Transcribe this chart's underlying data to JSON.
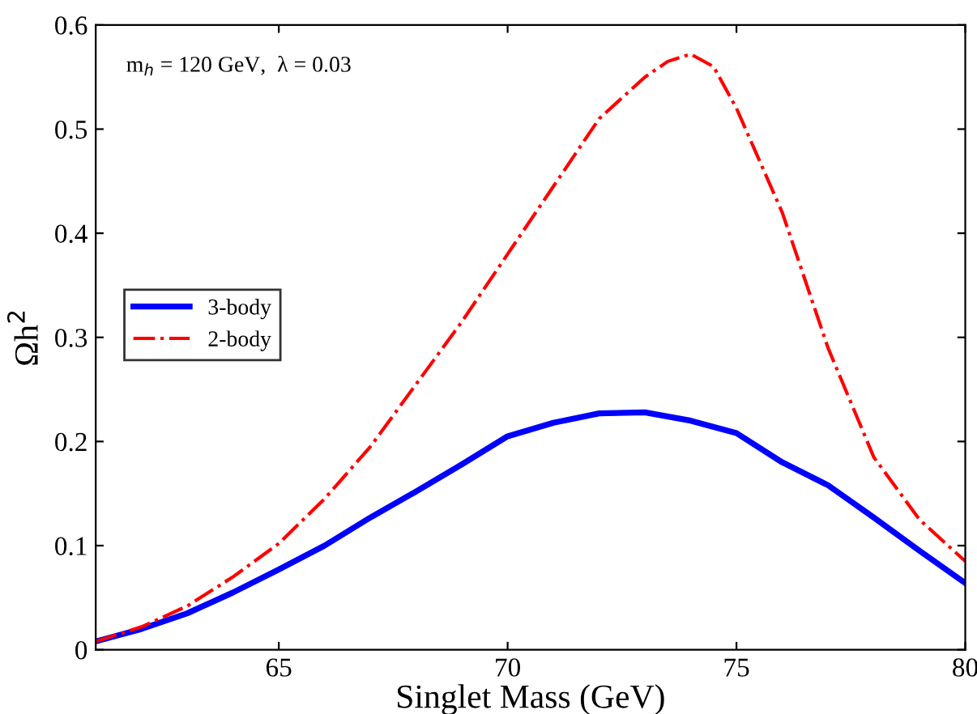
{
  "chart_data": {
    "type": "line",
    "xlabel": "Singlet Mass (GeV)",
    "ylabel": "Ωh$^{2}$",
    "annotations": [
      "m$_{h}$ = 120 GeV,  λ = 0.03"
    ],
    "xlim": [
      61,
      80
    ],
    "xticks": [
      65,
      70,
      75,
      80
    ],
    "ylim": [
      0,
      0.6
    ],
    "yticks": [
      0,
      0.1,
      0.2,
      0.3,
      0.4,
      0.5,
      0.6
    ],
    "grid": false,
    "legend": "left",
    "marker": "none",
    "series": [
      {
        "name": "3-body",
        "color": "#0000ff",
        "line_style": "solid",
        "x": [
          61,
          62,
          63,
          64,
          65,
          66,
          67,
          68,
          69,
          70,
          71,
          72,
          73,
          74,
          75,
          76,
          77,
          78,
          79,
          80
        ],
        "values": [
          0.008,
          0.02,
          0.035,
          0.055,
          0.077,
          0.1,
          0.127,
          0.152,
          0.178,
          0.205,
          0.218,
          0.227,
          0.228,
          0.22,
          0.208,
          0.18,
          0.158,
          0.127,
          0.095,
          0.064
        ]
      },
      {
        "name": "2-body",
        "color": "#ff0000",
        "line_style": "dashdot",
        "x": [
          61,
          62,
          63,
          64,
          65,
          66,
          67,
          68,
          69,
          70,
          71,
          72,
          73,
          73.5,
          74,
          74.5,
          75,
          76,
          77,
          78,
          79,
          80
        ],
        "values": [
          0.008,
          0.022,
          0.042,
          0.07,
          0.102,
          0.145,
          0.195,
          0.255,
          0.315,
          0.38,
          0.445,
          0.51,
          0.55,
          0.565,
          0.572,
          0.56,
          0.52,
          0.42,
          0.29,
          0.185,
          0.125,
          0.085
        ]
      }
    ]
  }
}
